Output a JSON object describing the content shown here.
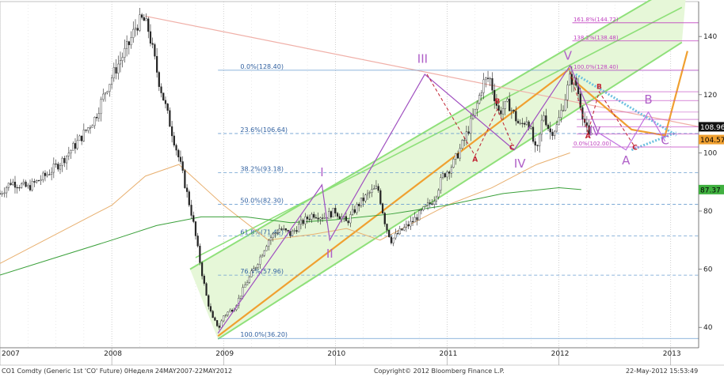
{
  "chart_data": {
    "type": "candlestick",
    "title": "",
    "xlabel": "",
    "ylabel": "",
    "ylim": [
      33,
      152
    ],
    "y_ticks": [
      40,
      60,
      80,
      100,
      120,
      140
    ],
    "x_ticks": [
      {
        "label": "2007",
        "x": 2007.0
      },
      {
        "label": "2008",
        "x": 2008.0
      },
      {
        "label": "2009",
        "x": 2009.0
      },
      {
        "label": "2010",
        "x": 2010.0
      },
      {
        "label": "2011",
        "x": 2011.0
      },
      {
        "label": "2012",
        "x": 2012.0
      },
      {
        "label": "2013",
        "x": 2013.0
      }
    ],
    "xlim": [
      2007.0,
      2013.25
    ],
    "price_series": {
      "keypoints": [
        [
          2007.0,
          86
        ],
        [
          2007.1,
          90
        ],
        [
          2007.25,
          88
        ],
        [
          2007.4,
          92
        ],
        [
          2007.55,
          97
        ],
        [
          2007.7,
          104
        ],
        [
          2007.85,
          112
        ],
        [
          2007.95,
          122
        ],
        [
          2008.05,
          130
        ],
        [
          2008.15,
          137
        ],
        [
          2008.22,
          144
        ],
        [
          2008.28,
          146
        ],
        [
          2008.33,
          142
        ],
        [
          2008.42,
          125
        ],
        [
          2008.52,
          110
        ],
        [
          2008.62,
          95
        ],
        [
          2008.72,
          78
        ],
        [
          2008.8,
          60
        ],
        [
          2008.85,
          50
        ],
        [
          2008.9,
          43
        ],
        [
          2008.96,
          40
        ],
        [
          2009.0,
          44
        ],
        [
          2009.1,
          47
        ],
        [
          2009.2,
          55
        ],
        [
          2009.3,
          62
        ],
        [
          2009.4,
          70
        ],
        [
          2009.5,
          74
        ],
        [
          2009.6,
          72
        ],
        [
          2009.7,
          76
        ],
        [
          2009.8,
          79
        ],
        [
          2009.9,
          78
        ],
        [
          2010.0,
          80
        ],
        [
          2010.1,
          76
        ],
        [
          2010.2,
          82
        ],
        [
          2010.3,
          86
        ],
        [
          2010.38,
          88
        ],
        [
          2010.45,
          75
        ],
        [
          2010.5,
          70
        ],
        [
          2010.58,
          73
        ],
        [
          2010.68,
          76
        ],
        [
          2010.78,
          80
        ],
        [
          2010.88,
          84
        ],
        [
          2010.96,
          92
        ],
        [
          2011.05,
          96
        ],
        [
          2011.15,
          104
        ],
        [
          2011.25,
          114
        ],
        [
          2011.32,
          124
        ],
        [
          2011.38,
          126
        ],
        [
          2011.46,
          114
        ],
        [
          2011.55,
          117
        ],
        [
          2011.65,
          109
        ],
        [
          2011.72,
          112
        ],
        [
          2011.8,
          99
        ],
        [
          2011.86,
          114
        ],
        [
          2011.92,
          107
        ],
        [
          2011.98,
          109
        ],
        [
          2012.05,
          118
        ],
        [
          2012.1,
          126
        ],
        [
          2012.16,
          123
        ],
        [
          2012.22,
          112
        ],
        [
          2012.27,
          105
        ],
        [
          2012.3,
          108
        ]
      ],
      "last": 108.96,
      "last_label": "108.96"
    },
    "moving_averages": [
      {
        "color": "#e8b070",
        "points": [
          [
            2007.0,
            62
          ],
          [
            2007.5,
            72
          ],
          [
            2008.0,
            82
          ],
          [
            2008.3,
            92
          ],
          [
            2008.6,
            96
          ],
          [
            2009.0,
            82
          ],
          [
            2009.4,
            70
          ],
          [
            2009.8,
            72
          ],
          [
            2010.1,
            74
          ],
          [
            2010.4,
            70
          ],
          [
            2010.7,
            76
          ],
          [
            2011.0,
            82
          ],
          [
            2011.4,
            88
          ],
          [
            2011.8,
            96
          ],
          [
            2012.1,
            100
          ]
        ]
      },
      {
        "color": "#3aa03a",
        "points": [
          [
            2007.0,
            58
          ],
          [
            2007.5,
            64
          ],
          [
            2008.0,
            70
          ],
          [
            2008.4,
            75
          ],
          [
            2008.8,
            78
          ],
          [
            2009.2,
            78
          ],
          [
            2009.6,
            76
          ],
          [
            2010.0,
            77
          ],
          [
            2010.5,
            79
          ],
          [
            2011.0,
            82
          ],
          [
            2011.5,
            86
          ],
          [
            2012.0,
            88
          ],
          [
            2012.2,
            87.37
          ]
        ]
      }
    ],
    "right_labels": [
      {
        "value": 108.96,
        "label": "108.96",
        "bg": "#111111",
        "fg": "#ffffff"
      },
      {
        "value": 104.57,
        "label": "104.57",
        "bg": "#f0a030",
        "fg": "#000000"
      },
      {
        "value": 87.37,
        "label": "87.37",
        "bg": "#40b040",
        "fg": "#000000"
      }
    ],
    "fib_main": [
      {
        "value": 128.4,
        "label": "0.0%(128.40)",
        "style": "solid"
      },
      {
        "value": 106.64,
        "label": "23.6%(106.64)",
        "style": "dashed"
      },
      {
        "value": 93.18,
        "label": "38.2%(93.18)",
        "style": "dashed"
      },
      {
        "value": 82.3,
        "label": "50.0%(82.30)",
        "style": "dashed"
      },
      {
        "value": 71.42,
        "label": "61.8%(71.42)",
        "style": "dashed"
      },
      {
        "value": 57.96,
        "label": "76.4%(57.96)",
        "style": "dashed"
      },
      {
        "value": 36.2,
        "label": "100.0%(36.20)",
        "style": "solid"
      }
    ],
    "fib_ext": [
      {
        "value": 144.72,
        "label": "161.8%(144.72)"
      },
      {
        "value": 138.48,
        "label": "138.2%(138.48)"
      },
      {
        "value": 128.4,
        "label": "100.0%(128.40)"
      },
      {
        "value": 102.0,
        "label": "0.0%(102.00)"
      }
    ],
    "wave_labels": [
      {
        "text": "I",
        "x": 2009.88,
        "y": 92
      },
      {
        "text": "II",
        "x": 2009.95,
        "y": 64
      },
      {
        "text": "III",
        "x": 2010.78,
        "y": 131
      },
      {
        "text": "IV",
        "x": 2011.65,
        "y": 95
      },
      {
        "text": "V",
        "x": 2012.08,
        "y": 132
      },
      {
        "text": "IV",
        "x": 2012.32,
        "y": 106
      },
      {
        "text": "A",
        "x": 2012.6,
        "y": 96
      },
      {
        "text": "B",
        "x": 2012.8,
        "y": 117
      },
      {
        "text": "C",
        "x": 2012.95,
        "y": 103
      }
    ],
    "small_labels": [
      {
        "text": "A",
        "x": 2011.25,
        "y": 97
      },
      {
        "text": "B",
        "x": 2011.45,
        "y": 117
      },
      {
        "text": "C",
        "x": 2011.58,
        "y": 101
      },
      {
        "text": "A",
        "x": 2012.26,
        "y": 105
      },
      {
        "text": "B",
        "x": 2012.36,
        "y": 122
      },
      {
        "text": "C",
        "x": 2012.68,
        "y": 101
      }
    ]
  },
  "footer": {
    "left": "CO1 Comdty (Generic 1st 'CO' Future) 0Неделя 24MAY2007-22MAY2012",
    "center": "Copyright© 2012 Bloomberg Finance L.P.",
    "right": "22-May-2012 15:53:49"
  }
}
